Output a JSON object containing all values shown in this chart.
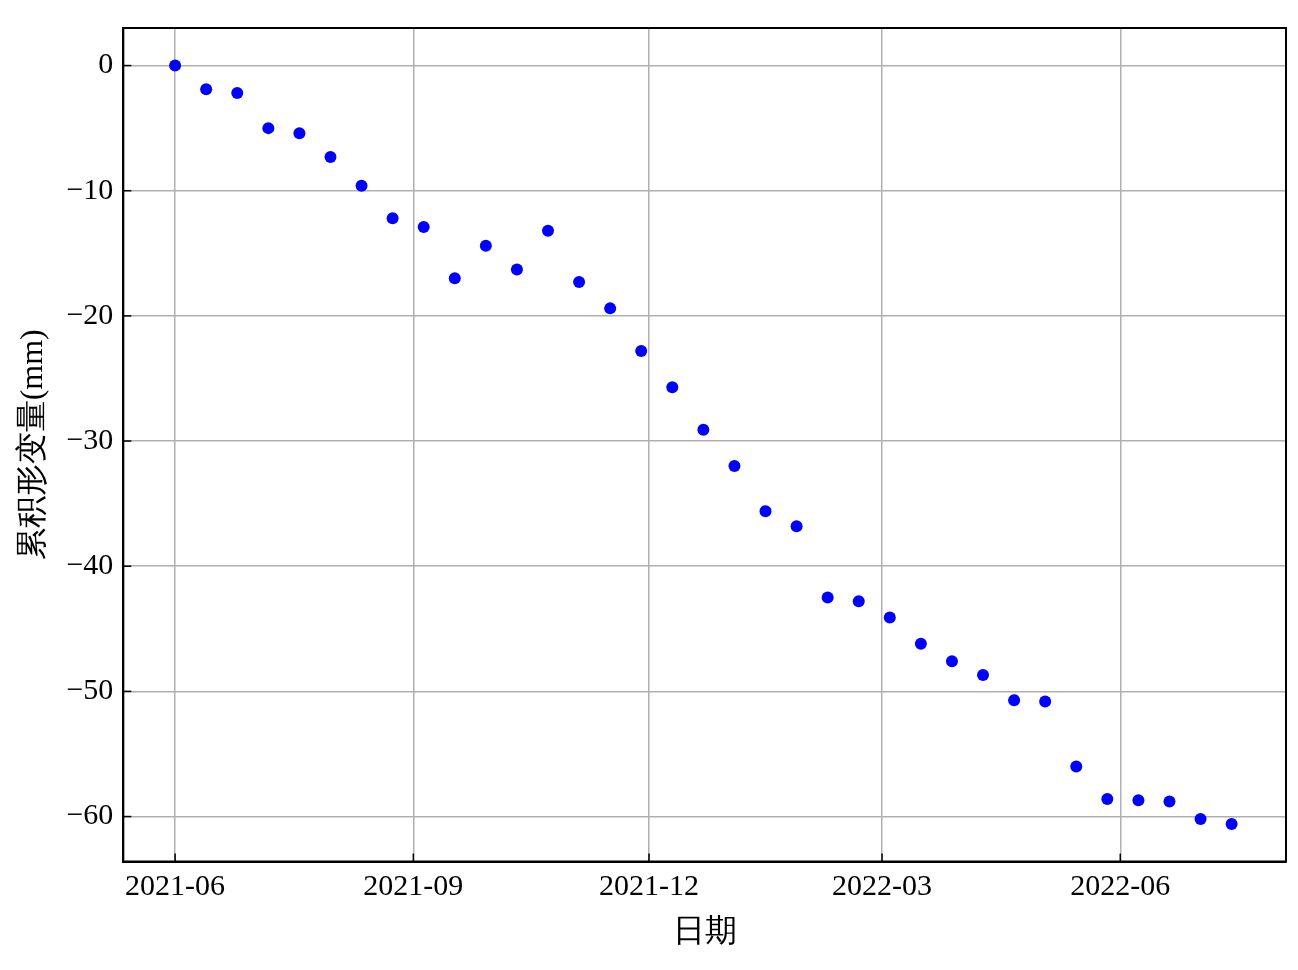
{
  "chart_data": {
    "type": "scatter",
    "xlabel": "日期",
    "ylabel": "累积形变量(mm)",
    "x": [
      "2021-06-01",
      "2021-06-13",
      "2021-06-25",
      "2021-07-07",
      "2021-07-19",
      "2021-07-31",
      "2021-08-12",
      "2021-08-24",
      "2021-09-05",
      "2021-09-17",
      "2021-09-29",
      "2021-10-11",
      "2021-10-23",
      "2021-11-04",
      "2021-11-16",
      "2021-11-28",
      "2021-12-10",
      "2021-12-22",
      "2022-01-03",
      "2022-01-15",
      "2022-01-27",
      "2022-02-08",
      "2022-02-20",
      "2022-03-04",
      "2022-03-16",
      "2022-03-28",
      "2022-04-09",
      "2022-04-21",
      "2022-05-03",
      "2022-05-15",
      "2022-05-27",
      "2022-06-08",
      "2022-06-20",
      "2022-07-02",
      "2022-07-14"
    ],
    "values": [
      0,
      -1.9,
      -2.2,
      -5.0,
      -5.4,
      -7.3,
      -9.6,
      -12.2,
      -12.9,
      -17.0,
      -14.4,
      -16.3,
      -13.2,
      -17.3,
      -19.4,
      -22.8,
      -25.7,
      -29.1,
      -32.0,
      -35.6,
      -36.8,
      -42.5,
      -42.8,
      -44.1,
      -46.2,
      -47.6,
      -48.7,
      -50.7,
      -50.8,
      -56.0,
      -58.6,
      -58.7,
      -58.8,
      -60.2,
      -60.6
    ],
    "color": "#0000ff",
    "marker": "circle",
    "xlim": [
      "2021-05-12",
      "2022-08-04"
    ],
    "xticks": [
      "2021-06",
      "2021-09",
      "2021-12",
      "2022-03",
      "2022-06"
    ],
    "ylim": [
      -63.6,
      3
    ],
    "yticks": [
      -60,
      -50,
      -40,
      -30,
      -20,
      -10,
      0
    ],
    "grid": true,
    "legend": false
  }
}
